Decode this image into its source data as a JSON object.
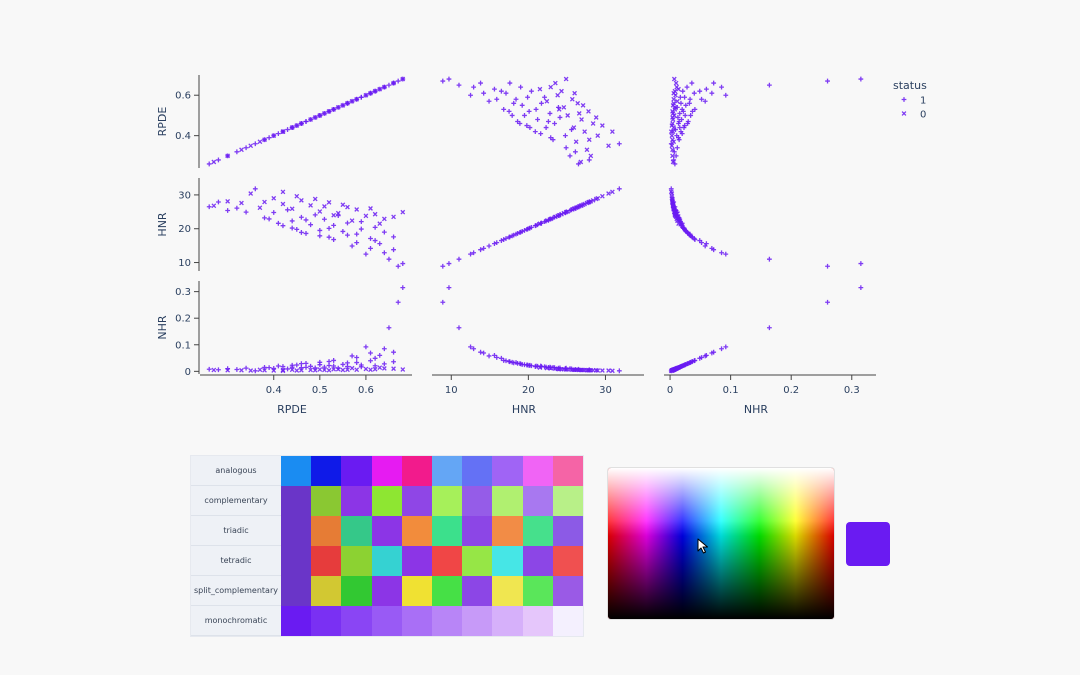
{
  "colors": {
    "accent": "#6a1bf2",
    "axis": "#444444",
    "tick_text": "#2a3f5f"
  },
  "chart_data": {
    "type": "scatter",
    "subtype": "scatter_matrix",
    "dimensions": [
      "RPDE",
      "HNR",
      "NHR"
    ],
    "dimension_ranges": {
      "RPDE": [
        0.24,
        0.7
      ],
      "HNR": [
        7.5,
        35
      ],
      "NHR": [
        -0.01,
        0.34
      ]
    },
    "ticks": {
      "RPDE": [
        0.4,
        0.5,
        0.6
      ],
      "HNR": [
        10,
        20,
        30
      ],
      "NHR": [
        0,
        0.1,
        0.2,
        0.3
      ]
    },
    "tick_labels": {
      "RPDE": [
        "0.4",
        "0.5",
        "0.6"
      ],
      "HNR": [
        "10",
        "20",
        "30"
      ],
      "NHR": [
        "0",
        "0.1",
        "0.2",
        "0.3"
      ]
    },
    "row_tick_values": {
      "RPDE": [
        0.4,
        0.6
      ],
      "HNR": [
        10,
        20,
        30
      ],
      "NHR": [
        0,
        0.1,
        0.2,
        0.3
      ]
    },
    "legend": {
      "title": "status",
      "placement": "top-right",
      "entries": [
        {
          "name": "1",
          "symbol": "cross"
        },
        {
          "name": "0",
          "symbol": "x"
        }
      ]
    },
    "grid": false,
    "series": [
      {
        "name": "1",
        "points": [
          [
            0.26,
            26.5,
            0.008
          ],
          [
            0.28,
            27.9,
            0.006
          ],
          [
            0.3,
            25.4,
            0.01
          ],
          [
            0.32,
            26.1,
            0.007
          ],
          [
            0.34,
            24.9,
            0.012
          ],
          [
            0.36,
            31.8,
            0.002
          ],
          [
            0.38,
            23.2,
            0.015
          ],
          [
            0.4,
            24.8,
            0.011
          ],
          [
            0.41,
            21.6,
            0.02
          ],
          [
            0.42,
            20.9,
            0.018
          ],
          [
            0.43,
            25.6,
            0.009
          ],
          [
            0.44,
            22.3,
            0.016
          ],
          [
            0.45,
            19.8,
            0.024
          ],
          [
            0.46,
            23.4,
            0.014
          ],
          [
            0.47,
            18.6,
            0.03
          ],
          [
            0.48,
            21.2,
            0.019
          ],
          [
            0.49,
            24.1,
            0.013
          ],
          [
            0.5,
            17.9,
            0.034
          ],
          [
            0.51,
            22.8,
            0.016
          ],
          [
            0.52,
            20.1,
            0.022
          ],
          [
            0.53,
            16.8,
            0.041
          ],
          [
            0.54,
            23.9,
            0.012
          ],
          [
            0.55,
            19.2,
            0.026
          ],
          [
            0.56,
            21.7,
            0.018
          ],
          [
            0.57,
            14.9,
            0.058
          ],
          [
            0.58,
            18.4,
            0.033
          ],
          [
            0.59,
            22.1,
            0.017
          ],
          [
            0.6,
            12.5,
            0.092
          ],
          [
            0.61,
            17.1,
            0.04
          ],
          [
            0.62,
            20.4,
            0.021
          ],
          [
            0.63,
            15.6,
            0.06
          ],
          [
            0.64,
            19.0,
            0.028
          ],
          [
            0.65,
            11.0,
            0.164
          ],
          [
            0.66,
            13.8,
            0.072
          ],
          [
            0.67,
            8.9,
            0.26
          ],
          [
            0.68,
            9.7,
            0.315
          ],
          [
            0.44,
            20.2,
            0.023
          ],
          [
            0.5,
            19.5,
            0.025
          ],
          [
            0.56,
            18.1,
            0.032
          ],
          [
            0.62,
            16.5,
            0.049
          ],
          [
            0.47,
            22.6,
            0.015
          ],
          [
            0.53,
            21.0,
            0.02
          ],
          [
            0.59,
            19.9,
            0.024
          ],
          [
            0.66,
            17.6,
            0.036
          ],
          [
            0.39,
            22.9,
            0.014
          ],
          [
            0.61,
            14.2,
            0.069
          ],
          [
            0.64,
            12.9,
            0.085
          ],
          [
            0.58,
            15.9,
            0.052
          ],
          [
            0.52,
            17.5,
            0.037
          ],
          [
            0.46,
            18.9,
            0.029
          ]
        ]
      },
      {
        "name": "0",
        "points": [
          [
            0.27,
            26.8,
            0.005
          ],
          [
            0.3,
            28.1,
            0.004
          ],
          [
            0.33,
            27.6,
            0.004
          ],
          [
            0.35,
            30.4,
            0.003
          ],
          [
            0.37,
            26.2,
            0.006
          ],
          [
            0.4,
            29.0,
            0.003
          ],
          [
            0.42,
            27.3,
            0.005
          ],
          [
            0.44,
            25.9,
            0.006
          ],
          [
            0.46,
            28.4,
            0.004
          ],
          [
            0.48,
            26.9,
            0.005
          ],
          [
            0.5,
            25.1,
            0.007
          ],
          [
            0.52,
            27.8,
            0.004
          ],
          [
            0.54,
            24.6,
            0.008
          ],
          [
            0.56,
            26.4,
            0.006
          ],
          [
            0.58,
            25.7,
            0.006
          ],
          [
            0.6,
            23.8,
            0.009
          ],
          [
            0.62,
            24.3,
            0.008
          ],
          [
            0.64,
            22.9,
            0.011
          ],
          [
            0.66,
            23.5,
            0.01
          ],
          [
            0.68,
            24.9,
            0.007
          ],
          [
            0.45,
            29.6,
            0.003
          ],
          [
            0.49,
            28.8,
            0.004
          ],
          [
            0.55,
            27.1,
            0.005
          ],
          [
            0.61,
            26.0,
            0.006
          ],
          [
            0.53,
            24.0,
            0.008
          ],
          [
            0.57,
            22.4,
            0.012
          ],
          [
            0.63,
            21.5,
            0.014
          ],
          [
            0.51,
            26.6,
            0.005
          ],
          [
            0.38,
            27.9,
            0.004
          ],
          [
            0.42,
            30.9,
            0.002
          ]
        ]
      }
    ]
  },
  "palette": {
    "schemes": [
      {
        "label": "analogous",
        "colors": [
          "#1a8cf2",
          "#0f1ae8",
          "#6a1bf2",
          "#e61bf2",
          "#f21b8c",
          "#64a6f5",
          "#6471f5",
          "#a064f5",
          "#f064f5",
          "#f564a6"
        ]
      },
      {
        "label": "complementary",
        "colors": [
          "#6a35c8",
          "#8ac832",
          "#8c35e6",
          "#8ee632",
          "#8f46e6",
          "#a6f05a",
          "#955ce8",
          "#b0f070",
          "#a878f0",
          "#b8f088"
        ]
      },
      {
        "label": "triadic",
        "colors": [
          "#6a35c8",
          "#e67c35",
          "#35c889",
          "#8c35e6",
          "#f28c3c",
          "#3ce08c",
          "#8c46e6",
          "#f28c46",
          "#46e08c",
          "#8c5ae6"
        ]
      },
      {
        "label": "tetradic",
        "colors": [
          "#6a35c8",
          "#e63c3c",
          "#8cd232",
          "#35d2d2",
          "#8c35e6",
          "#f04646",
          "#96e646",
          "#46e6e6",
          "#8c46e6",
          "#f05050"
        ]
      },
      {
        "label": "split_complementary",
        "colors": [
          "#6a35c8",
          "#d2c832",
          "#32c832",
          "#8c35e6",
          "#f0e132",
          "#46e046",
          "#8c46e6",
          "#f0e650",
          "#5ae65a",
          "#9a5ae6"
        ]
      },
      {
        "label": "monochromatic",
        "colors": [
          "#6a1bf2",
          "#7a30f3",
          "#8a45f4",
          "#995af5",
          "#a96ff6",
          "#b885f7",
          "#c79af8",
          "#d6b0fa",
          "#e5c6fb",
          "#f4f0fe"
        ]
      }
    ]
  },
  "picker": {
    "selected_color": "#6a1bf2",
    "cursor_icon": "mouse-pointer-icon"
  }
}
